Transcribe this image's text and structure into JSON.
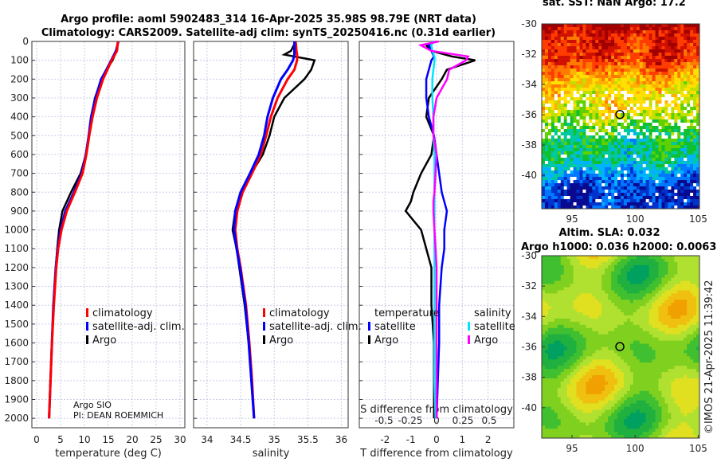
{
  "title_line1": "Argo profile: aoml 5902483_314 16-Apr-2025 35.98S 98.79E (NRT data)",
  "title_line2": "Climatology: CARS2009. Satellite-adj clim: synTS_20250416.nc (0.31d earlier)",
  "credit": "©IMOS 21-Apr-2025 11:39:42",
  "argo_info": [
    "Argo SIO",
    "PI: DEAN ROEMMICH"
  ],
  "colors": {
    "climatology": "#ff0000",
    "satellite": "#0000ff",
    "argo": "#000000",
    "sal_satellite": "#00e5ff",
    "sal_argo": "#ff00ff"
  },
  "chart_data": [
    {
      "type": "line",
      "xlabel": "temperature (deg C)",
      "xlim": [
        -1,
        31
      ],
      "ylim": [
        0,
        2050
      ],
      "xticks": [
        0,
        5,
        10,
        15,
        20,
        25,
        30
      ],
      "yticks": [
        0,
        100,
        200,
        300,
        400,
        500,
        600,
        700,
        800,
        900,
        1000,
        1100,
        1200,
        1300,
        1400,
        1500,
        1600,
        1700,
        1800,
        1900,
        2000
      ],
      "legend": [
        "climatology",
        "satellite-adj. clim.",
        "Argo"
      ],
      "depth": [
        0,
        50,
        100,
        150,
        200,
        300,
        400,
        500,
        600,
        700,
        800,
        900,
        1000,
        1100,
        1200,
        1400,
        1600,
        1800,
        2000
      ],
      "series": [
        {
          "name": "climatology",
          "values": [
            17,
            16.8,
            15.7,
            14.8,
            13.9,
            12.6,
            11.7,
            11.0,
            10.4,
            9.6,
            8.0,
            6.3,
            5.2,
            4.5,
            4.1,
            3.6,
            3.2,
            2.9,
            2.6
          ]
        },
        {
          "name": "satellite-adj. clim.",
          "values": [
            17.1,
            16.6,
            15.6,
            14.6,
            13.5,
            12.3,
            11.4,
            10.9,
            10.3,
            9.4,
            7.8,
            6.0,
            5.0,
            4.4,
            4.0,
            3.5,
            3.2,
            2.9,
            2.6
          ]
        },
        {
          "name": "Argo",
          "values": [
            17.0,
            16.7,
            15.9,
            14.6,
            13.6,
            12.2,
            11.4,
            10.9,
            10.3,
            9.2,
            7.2,
            5.4,
            4.7,
            4.3,
            4.0,
            3.5,
            3.2,
            2.9,
            2.6
          ]
        }
      ]
    },
    {
      "type": "line",
      "xlabel": "salinity",
      "xlim": [
        33.8,
        36.1
      ],
      "ylim": [
        0,
        2050
      ],
      "xticks": [
        34,
        34.5,
        35,
        35.5,
        36
      ],
      "legend": [
        "climatology",
        "satellite-adj. clim.",
        "Argo"
      ],
      "depth": [
        0,
        50,
        70,
        100,
        150,
        200,
        300,
        400,
        500,
        600,
        700,
        800,
        900,
        1000,
        1100,
        1200,
        1400,
        1600,
        1800,
        2000
      ],
      "series": [
        {
          "name": "climatology",
          "values": [
            35.32,
            35.33,
            35.34,
            35.34,
            35.3,
            35.2,
            35.05,
            34.95,
            34.88,
            34.8,
            34.67,
            34.53,
            34.45,
            34.42,
            34.45,
            34.5,
            34.58,
            34.63,
            34.67,
            34.7
          ]
        },
        {
          "name": "satellite-adj. clim.",
          "values": [
            35.3,
            35.3,
            35.3,
            35.28,
            35.2,
            35.1,
            34.98,
            34.9,
            34.85,
            34.77,
            34.64,
            34.5,
            34.42,
            34.4,
            34.44,
            34.49,
            34.57,
            34.62,
            34.66,
            34.7
          ]
        },
        {
          "name": "Argo",
          "values": [
            35.32,
            35.25,
            35.15,
            35.6,
            35.55,
            35.45,
            35.15,
            35.0,
            34.93,
            34.83,
            34.66,
            34.5,
            34.42,
            34.38,
            34.44,
            34.48,
            34.56,
            34.62,
            34.66,
            34.7
          ]
        }
      ]
    },
    {
      "type": "line",
      "xlabel": "T difference from climatology",
      "xlabel2": "S difference from climatology",
      "xlim": [
        -3,
        3
      ],
      "xlim2": [
        -0.65,
        0.65
      ],
      "xticks": [
        -2,
        -1,
        0,
        1,
        2
      ],
      "xticks2": [
        -0.5,
        -0.25,
        0,
        0.25,
        0.5
      ],
      "ylim": [
        0,
        2050
      ],
      "legend_titles": [
        "temperature",
        "salinity"
      ],
      "legend_t": [
        "satellite",
        "Argo"
      ],
      "legend_s": [
        "satellite",
        "Argo"
      ],
      "depth": [
        0,
        20,
        50,
        80,
        100,
        150,
        200,
        300,
        400,
        500,
        600,
        700,
        800,
        850,
        900,
        1000,
        1100,
        1200,
        1400,
        1600,
        1800,
        2000
      ],
      "series": [
        {
          "name": "T satellite",
          "values": [
            -0.1,
            -0.3,
            -0.2,
            -0.1,
            -0.2,
            -0.3,
            -0.4,
            -0.4,
            -0.3,
            -0.1,
            0,
            0.1,
            0.2,
            0.3,
            0.4,
            0.3,
            0.3,
            0.2,
            0.1,
            0.1,
            0.05,
            0
          ]
        },
        {
          "name": "T Argo",
          "values": [
            0,
            -0.4,
            -0.2,
            0.6,
            1.5,
            0.4,
            0.2,
            -0.3,
            -0.4,
            -0.1,
            -0.2,
            -0.6,
            -0.9,
            -1.0,
            -1.2,
            -0.6,
            -0.4,
            -0.2,
            -0.2,
            -0.1,
            -0.1,
            -0.1
          ]
        },
        {
          "name": "S satellite",
          "values": [
            -0.03,
            -0.05,
            -0.04,
            -0.02,
            -0.02,
            -0.03,
            -0.04,
            -0.04,
            -0.03,
            -0.03,
            -0.02,
            -0.02,
            -0.02,
            -0.02,
            -0.02,
            -0.02,
            -0.02,
            -0.02,
            -0.02,
            -0.02,
            -0.02,
            -0.01
          ]
        },
        {
          "name": "S Argo",
          "values": [
            0.02,
            -0.15,
            -0.05,
            0.3,
            0.28,
            0.12,
            0.1,
            0.0,
            -0.03,
            -0.03,
            0.0,
            -0.01,
            -0.02,
            -0.03,
            -0.03,
            -0.02,
            -0.01,
            0.0,
            0.0,
            0.0,
            0.0,
            0.0
          ]
        }
      ]
    },
    {
      "type": "heatmap",
      "title": "sat. SST: NaN Argo: 17.2",
      "xticks": [
        95,
        100,
        105
      ],
      "yticks": [
        -30,
        -32,
        -34,
        -36,
        -38,
        -40
      ],
      "argo_lon": 98.79,
      "argo_lat": -35.98
    },
    {
      "type": "heatmap",
      "title": "Altim. SLA: 0.032",
      "subtitle": "Argo h1000: 0.036 h2000: 0.0063",
      "xticks": [
        95,
        100,
        105
      ],
      "yticks": [
        -30,
        -32,
        -34,
        -36,
        -38,
        -40
      ],
      "argo_lon": 98.79,
      "argo_lat": -35.98
    }
  ]
}
